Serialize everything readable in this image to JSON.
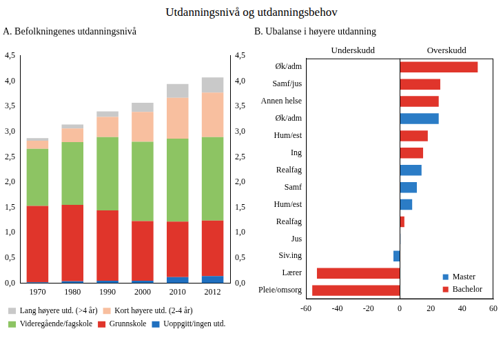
{
  "title": "Utdanningsnivå og utdanningsbehov",
  "chart_data": [
    {
      "type": "bar",
      "title": "A. Befolkningenes utdanningsnivå",
      "categories": [
        "1970",
        "1980",
        "1990",
        "2000",
        "2010",
        "2012"
      ],
      "stacked": true,
      "grid": false,
      "legend": "bottom",
      "series": [
        {
          "name": "Uoppgitt/ingen utd.",
          "color": "#1f6fbf",
          "values": [
            0.02,
            0.04,
            0.05,
            0.05,
            0.12,
            0.14
          ]
        },
        {
          "name": "Grunnskole",
          "color": "#e0352b",
          "values": [
            1.51,
            1.51,
            1.39,
            1.18,
            1.1,
            1.1
          ]
        },
        {
          "name": "Videregående/fagskole",
          "color": "#8dc463",
          "values": [
            1.13,
            1.24,
            1.45,
            1.57,
            1.64,
            1.65
          ]
        },
        {
          "name": "Kort høyere utd. (2-4 år)",
          "color": "#f8bf9f",
          "values": [
            0.16,
            0.27,
            0.4,
            0.59,
            0.81,
            0.88
          ]
        },
        {
          "name": "Lang høyere utd. (>4 år)",
          "color": "#c9c9c9",
          "values": [
            0.05,
            0.08,
            0.11,
            0.18,
            0.27,
            0.3
          ]
        }
      ],
      "ylim": [
        0,
        4.5
      ],
      "yticks": [
        {
          "value": 0,
          "label": "0,0"
        },
        {
          "value": 0.5,
          "label": "0,5"
        },
        {
          "value": 1,
          "label": "1,0"
        },
        {
          "value": 1.5,
          "label": "1,5"
        },
        {
          "value": 2,
          "label": "2,0"
        },
        {
          "value": 2.5,
          "label": "2,5"
        },
        {
          "value": 3,
          "label": "3,0"
        },
        {
          "value": 3.5,
          "label": "3,5"
        },
        {
          "value": 4,
          "label": "4,0"
        },
        {
          "value": 4.5,
          "label": "4,5"
        }
      ],
      "y2lim": [
        0,
        4.5
      ],
      "y2ticks": [
        {
          "value": 0,
          "label": "0,0"
        },
        {
          "value": 0.5,
          "label": "0,5"
        },
        {
          "value": 1,
          "label": "1,0"
        },
        {
          "value": 1.5,
          "label": "1,5"
        },
        {
          "value": 2,
          "label": "2,0"
        },
        {
          "value": 2.5,
          "label": "2,5"
        },
        {
          "value": 3,
          "label": "3,0"
        },
        {
          "value": 3.5,
          "label": "3,5"
        },
        {
          "value": 4,
          "label": "4,0"
        },
        {
          "value": 4.5,
          "label": "4,5"
        }
      ]
    },
    {
      "type": "bar",
      "title": "B. Ubalanse i høyere utdanning",
      "orientation": "horizontal",
      "grid": false,
      "legend": "lower right",
      "annotations": [
        "Underskudd",
        "Overskudd"
      ],
      "categories": [
        "Øk/adm",
        "Samf/jus",
        "Annen helse",
        "Øk/adm",
        "Hum/est",
        "Ing",
        "Realfag",
        "Samf",
        "Hum/est",
        "Realfag",
        "Jus",
        "Siv.ing",
        "Lærer",
        "Pleie/omsorg"
      ],
      "series": [
        {
          "name": "Master",
          "color": "#2b7cc6",
          "values": [
            null,
            null,
            null,
            25,
            null,
            null,
            14,
            11,
            8,
            null,
            0.5,
            -4,
            null,
            null
          ]
        },
        {
          "name": "Bachelor",
          "color": "#e0352b",
          "values": [
            50,
            26,
            25,
            null,
            18,
            15,
            null,
            null,
            null,
            3,
            null,
            null,
            -53,
            -56
          ]
        }
      ],
      "xlim": [
        -60,
        60
      ],
      "xticks": [
        -60,
        -40,
        -20,
        0,
        20,
        40,
        60
      ]
    }
  ]
}
